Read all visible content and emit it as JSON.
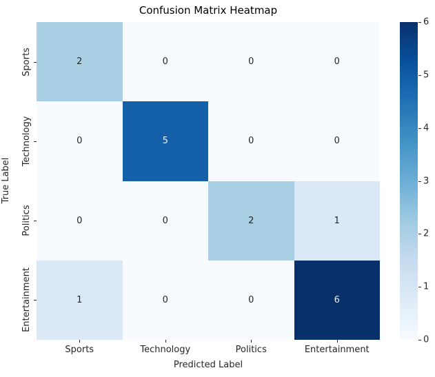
{
  "chart_data": {
    "type": "heatmap",
    "title": "Confusion Matrix Heatmap",
    "xlabel": "Predicted Label",
    "ylabel": "True Label",
    "x_tick_labels": [
      "Sports",
      "Technology",
      "Politics",
      "Entertainment"
    ],
    "y_tick_labels": [
      "Sports",
      "Technology",
      "Politics",
      "Entertainment"
    ],
    "matrix": [
      [
        2,
        0,
        0,
        0
      ],
      [
        0,
        5,
        0,
        0
      ],
      [
        0,
        0,
        2,
        1
      ],
      [
        1,
        0,
        0,
        6
      ]
    ],
    "vmin": 0,
    "vmax": 6,
    "colormap": "Blues",
    "annotations": true,
    "grid": false,
    "legend_position": "colorbar-right",
    "colorbar_ticks": [
      0,
      1,
      2,
      3,
      4,
      5,
      6
    ],
    "value_colors": {
      "0": "#f7fbff",
      "1": "#dbe9f6",
      "2": "#a9cfe5",
      "5": "#1561a9",
      "6": "#08306b"
    },
    "cell_text_dark": "#262626",
    "cell_text_light": "#f2f2f2",
    "light_text_min_value": 5,
    "colorbar_gradient_stops": [
      {
        "pos": 0.0,
        "color": "#f7fbff"
      },
      {
        "pos": 0.125,
        "color": "#deebf7"
      },
      {
        "pos": 0.25,
        "color": "#c6dbef"
      },
      {
        "pos": 0.375,
        "color": "#9ecae1"
      },
      {
        "pos": 0.5,
        "color": "#6baed6"
      },
      {
        "pos": 0.625,
        "color": "#4292c6"
      },
      {
        "pos": 0.75,
        "color": "#2171b5"
      },
      {
        "pos": 0.875,
        "color": "#08519c"
      },
      {
        "pos": 1.0,
        "color": "#08306b"
      }
    ]
  }
}
